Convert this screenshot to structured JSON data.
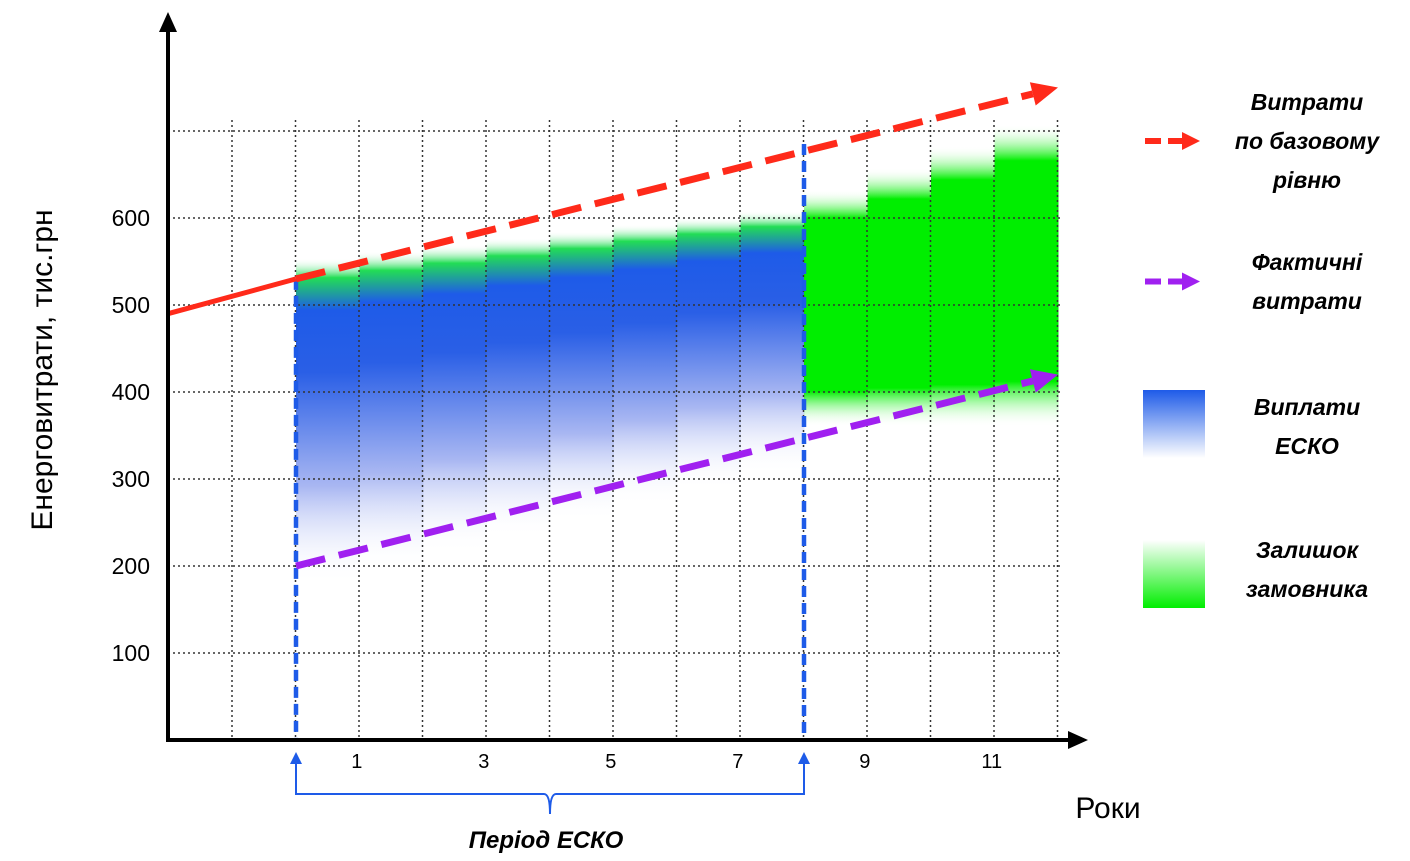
{
  "chart_data": {
    "type": "line",
    "xlabel": "Роки",
    "ylabel": "Енерговитрати, тис.грн",
    "yticks": [
      "100",
      "200",
      "300",
      "400",
      "500",
      "600"
    ],
    "xticks": [
      "1",
      "3",
      "5",
      "7",
      "9",
      "11"
    ],
    "ylim": [
      0,
      700
    ],
    "grid": true,
    "legend_position": "right",
    "series": [
      {
        "name": "Витрати по базовому рівню",
        "style": "dashed-arrow",
        "color": "#ff2a1a",
        "x": [
          0.5,
          12.5
        ],
        "y": [
          530,
          750
        ]
      },
      {
        "name": "Фактичні витрати",
        "style": "dashed-arrow",
        "color": "#a020f0",
        "x": [
          0.5,
          12.5
        ],
        "y": [
          200,
          420
        ]
      },
      {
        "name": "Виплати ЕСКО",
        "style": "gradient-area",
        "color": "#1e5be8",
        "x": [
          0.5,
          8.5
        ],
        "y_top": [
          520,
          582
        ],
        "y_bottom": [
          200,
          345
        ]
      },
      {
        "name": "Залишок замовника",
        "style": "gradient-area",
        "color": "#00ee00",
        "x": [
          8.5,
          12.5
        ],
        "y_top": [
          600,
          700
        ],
        "y_bottom": [
          400,
          400
        ]
      }
    ],
    "lead_in": {
      "color": "#ff2a1a",
      "x": [
        -2,
        0.5
      ],
      "y": [
        490,
        530
      ]
    },
    "annotations": {
      "period_label": "Період ЕСКО",
      "period_x": [
        0.5,
        8.5
      ]
    }
  },
  "legend": [
    {
      "lines": [
        "Витрати",
        "по базовому",
        "рівню"
      ],
      "swatch": "red-dashed-arrow"
    },
    {
      "lines": [
        "Фактичні",
        "витрати"
      ],
      "swatch": "purple-dashed-arrow"
    },
    {
      "lines": [
        "Виплати",
        "ЕСКО"
      ],
      "swatch": "blue-gradient"
    },
    {
      "lines": [
        "Залишок",
        "замовника"
      ],
      "swatch": "green-gradient"
    }
  ],
  "colors": {
    "red": "#ff2a1a",
    "purple": "#a020f0",
    "blue": "#1e5be8",
    "green": "#00ee00",
    "bracket": "#1e5be8"
  }
}
